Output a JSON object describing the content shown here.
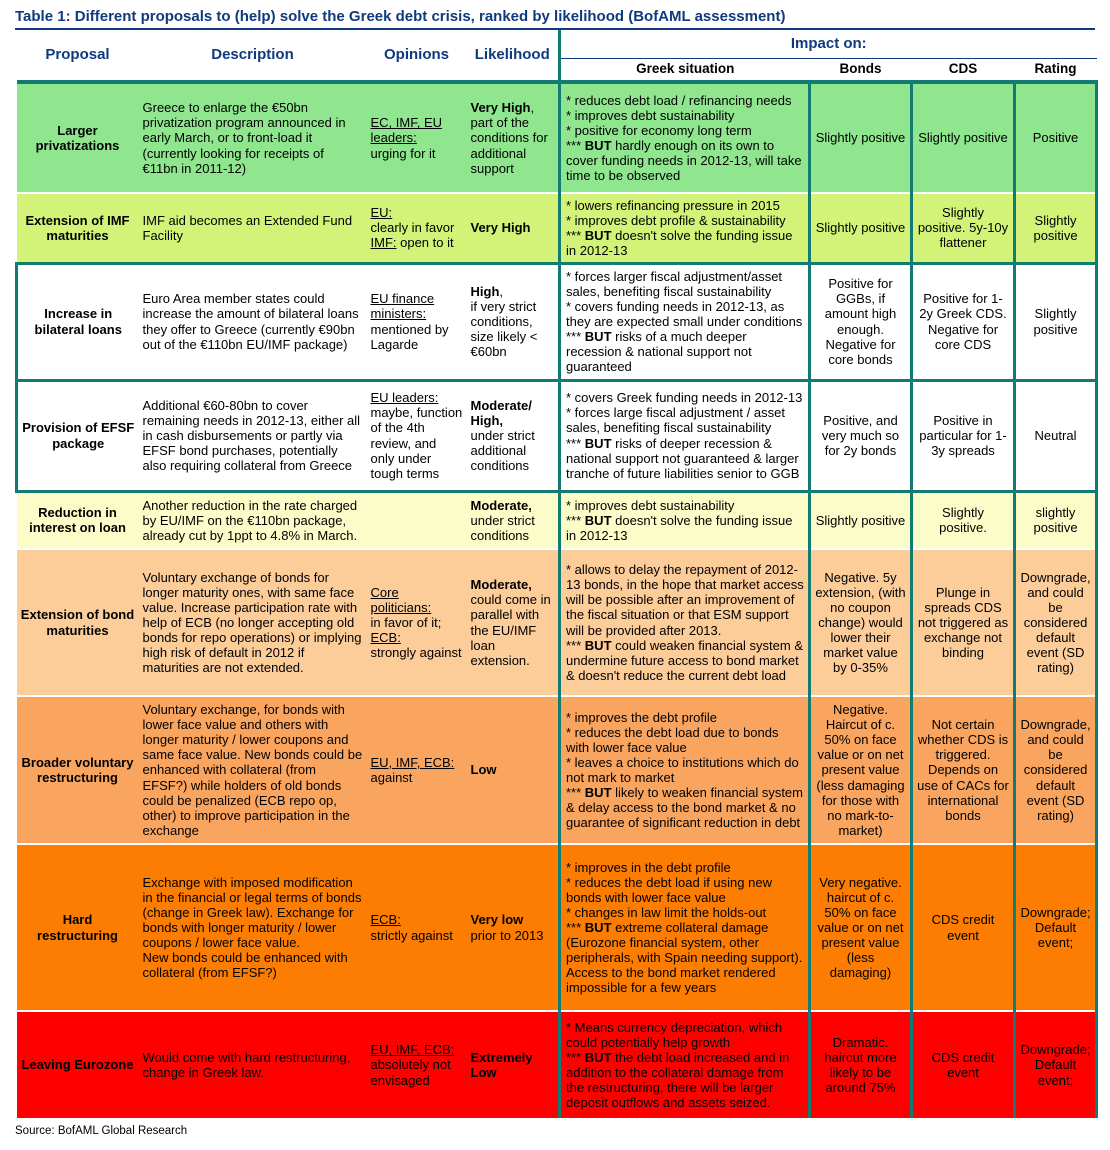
{
  "title": "Table 1: Different proposals to (help) solve the Greek debt crisis, ranked by likelihood (BofAML assessment)",
  "source": "Source: BofAML Global Research",
  "colors": {
    "teal_border": "#107C72",
    "navy_text": "#103A7E",
    "green": "#8FE68F",
    "lime": "#D2F377",
    "white": "#FFFFFF",
    "yellow": "#FCFCC8",
    "peach": "#FCCC99",
    "orange": "#FAA55F",
    "dark_orange": "#FC7D02",
    "red": "#FE0000"
  },
  "header": {
    "columns": [
      "Proposal",
      "Description",
      "Opinions",
      "Likelihood"
    ],
    "impact_label": "Impact on:",
    "impact_columns": [
      "Greek situation",
      "Bonds",
      "CDS",
      "Rating"
    ]
  },
  "rows": [
    {
      "tone": "green",
      "boxed": false,
      "proposal": "Larger privatizations",
      "description": "Greece to enlarge the €50bn privatization program announced in early March, or to front-load it (currently looking for receipts of €11bn in 2011-12)",
      "opinions": "{u}EC, IMF, EU leaders:{/u}\nurging for it",
      "likelihood": "{b}Very High{/b},\npart of the conditions for additional support",
      "greek_situation": "* reduces debt load / refinancing needs\n* improves debt sustainability\n* positive for economy long term\n*** {b}BUT{/b} hardly enough on its own to cover funding needs in 2012-13, will take time to be observed",
      "bonds": "Slightly positive",
      "cds": "Slightly positive",
      "rating": "Positive"
    },
    {
      "tone": "lime",
      "boxed": false,
      "proposal": "Extension of IMF maturities",
      "description": "IMF aid becomes an Extended Fund Facility",
      "opinions": "{u}EU:{/u}\nclearly in favor\n{u}IMF:{/u} open to it",
      "likelihood": "{b}Very High{/b}",
      "greek_situation": "* lowers refinancing pressure in 2015\n* improves debt profile & sustainability\n*** {b}BUT{/b} doesn't solve the funding issue in 2012-13",
      "bonds": "Slightly positive",
      "cds": "Slightly positive. 5y-10y flattener",
      "rating": "Slightly positive"
    },
    {
      "tone": "white",
      "boxed": true,
      "proposal": "Increase in bilateral loans",
      "description": "Euro Area member states could increase the amount of bilateral loans they offer to Greece (currently €90bn out of the €110bn EU/IMF package)",
      "opinions": "{u}EU finance ministers:{/u}\nmentioned by Lagarde",
      "likelihood": "{b}High{/b},\nif very strict conditions, size likely < €60bn",
      "greek_situation": "* forces larger fiscal adjustment/asset sales, benefiting fiscal sustainability\n* covers funding needs in 2012-13, as they are expected small under conditions\n*** {b}BUT{/b} risks of a much deeper recession & national support not guaranteed",
      "bonds": "Positive for GGBs, if amount high enough. Negative for core bonds",
      "cds": "Positive for 1-2y Greek CDS. Negative for core CDS",
      "rating": "Slightly positive"
    },
    {
      "tone": "white",
      "boxed": true,
      "proposal": "Provision of EFSF package",
      "description": "Additional €60-80bn to cover remaining needs in 2012-13, either all in cash disbursements or partly via EFSF bond purchases, potentially also requiring collateral from Greece",
      "opinions": "{u}EU leaders:{/u}\nmaybe, function of the 4th review, and only under tough terms",
      "likelihood": "{b}Moderate/ High,{/b}\nunder strict additional conditions",
      "greek_situation": "* covers Greek funding needs in 2012-13 * forces large fiscal adjustment / asset sales, benefiting fiscal sustainability\n*** {b}BUT{/b} risks of deeper recession & national support not guaranteed & larger tranche of future liabilities senior to GGB",
      "bonds": "Positive, and very much so for 2y bonds",
      "cds": "Positive in particular for 1-3y spreads",
      "rating": "Neutral"
    },
    {
      "tone": "yellow",
      "boxed": false,
      "proposal": "Reduction in interest on loan",
      "description": "Another reduction in the rate charged by EU/IMF on the €110bn package, already cut by 1ppt to 4.8% in March.",
      "opinions": "",
      "likelihood": "{b}Moderate,{/b}\nunder strict conditions",
      "greek_situation": "* improves debt sustainability\n*** {b}BUT{/b} doesn't solve the funding issue in 2012-13",
      "bonds": "Slightly positive",
      "cds": "Slightly positive.",
      "rating": "slightly positive"
    },
    {
      "tone": "peach",
      "boxed": false,
      "proposal": "Extension of bond maturities",
      "description": "Voluntary exchange of bonds for longer maturity ones, with same face value. Increase participation rate with help of ECB (no longer accepting old bonds for repo operations) or implying high risk of default in 2012 if maturities are not extended.",
      "opinions": "{u}Core politicians:{/u}\nin favor of it;\n{u}ECB:{/u}\nstrongly against",
      "likelihood": "{b}Moderate,{/b}\ncould come in parallel with the EU/IMF loan extension.",
      "greek_situation": "* allows to delay the repayment of 2012-13 bonds, in the hope that market access will be possible after an improvement of the fiscal situation or that ESM support will be provided after 2013.\n*** {b}BUT{/b} could weaken financial system & undermine future access to bond market & doesn't reduce the current debt load",
      "bonds": "Negative. 5y extension, (with no coupon change) would lower their market value by 0-35%",
      "cds": "Plunge in spreads CDS not triggered as exchange not binding",
      "rating": "Downgrade, and could be considered default event (SD rating)"
    },
    {
      "tone": "orange",
      "boxed": false,
      "proposal": "Broader voluntary restructuring",
      "description": "Voluntary exchange, for bonds with lower face value and others with longer maturity / lower coupons and same face value. New bonds could be enhanced with collateral (from EFSF?) while holders of old bonds could be penalized (ECB repo op, other) to improve participation in the exchange",
      "opinions": "{u}EU, IMF, ECB:{/u}\nagainst",
      "likelihood": "{b}Low{/b}",
      "greek_situation": "* improves the debt profile\n* reduces the debt load due to bonds with lower face value\n* leaves a choice to institutions which do not mark to market\n*** {b}BUT{/b} likely to weaken financial system & delay access to the bond market & no guarantee of significant reduction in debt",
      "bonds": "Negative. Haircut of c. 50% on face value or on net present value (less damaging for those with no mark-to-market)",
      "cds": "Not certain whether CDS is triggered. Depends on use of CACs for international bonds",
      "rating": "Downgrade, and could be considered default event (SD rating)"
    },
    {
      "tone": "dark_orange",
      "boxed": false,
      "proposal": "Hard restructuring",
      "description": "Exchange with imposed modification in the financial or legal terms of bonds (change in Greek law). Exchange for bonds with longer maturity / lower coupons / lower face value.\nNew bonds could be enhanced with collateral (from EFSF?)",
      "opinions": "{u}ECB:{/u}\nstrictly against",
      "likelihood": "{b}Very low{/b}\nprior to 2013",
      "greek_situation": "* improves in the debt profile\n* reduces the debt load if using new bonds with lower face value\n* changes in law limit the holds-out\n*** {b}BUT{/b} extreme collateral damage (Eurozone financial system, other peripherals, with Spain needing support). Access to the bond market rendered impossible for a few years",
      "bonds": "Very negative. haircut of c. 50% on face value or on net present value (less damaging)",
      "cds": "CDS credit event",
      "rating": "Downgrade; Default event;"
    },
    {
      "tone": "red",
      "boxed": false,
      "proposal": "Leaving Eurozone",
      "description": "Would come with hard restructuring, change in Greek law.",
      "opinions": "{u}EU, IMF, ECB:{/u}\nabsolutely not envisaged",
      "likelihood": "{b}Extremely Low{/b}",
      "greek_situation": "* Means currency depreciation, which could potentially help growth\n*** {b}BUT{/b} the debt load increased and in addition to the collateral damage from the restructuring, there will be larger deposit outflows and assets seized.",
      "bonds": "Dramatic. haircut more likely to be around 75%",
      "cds": "CDS credit event",
      "rating": "Downgrade; Default event;"
    }
  ]
}
